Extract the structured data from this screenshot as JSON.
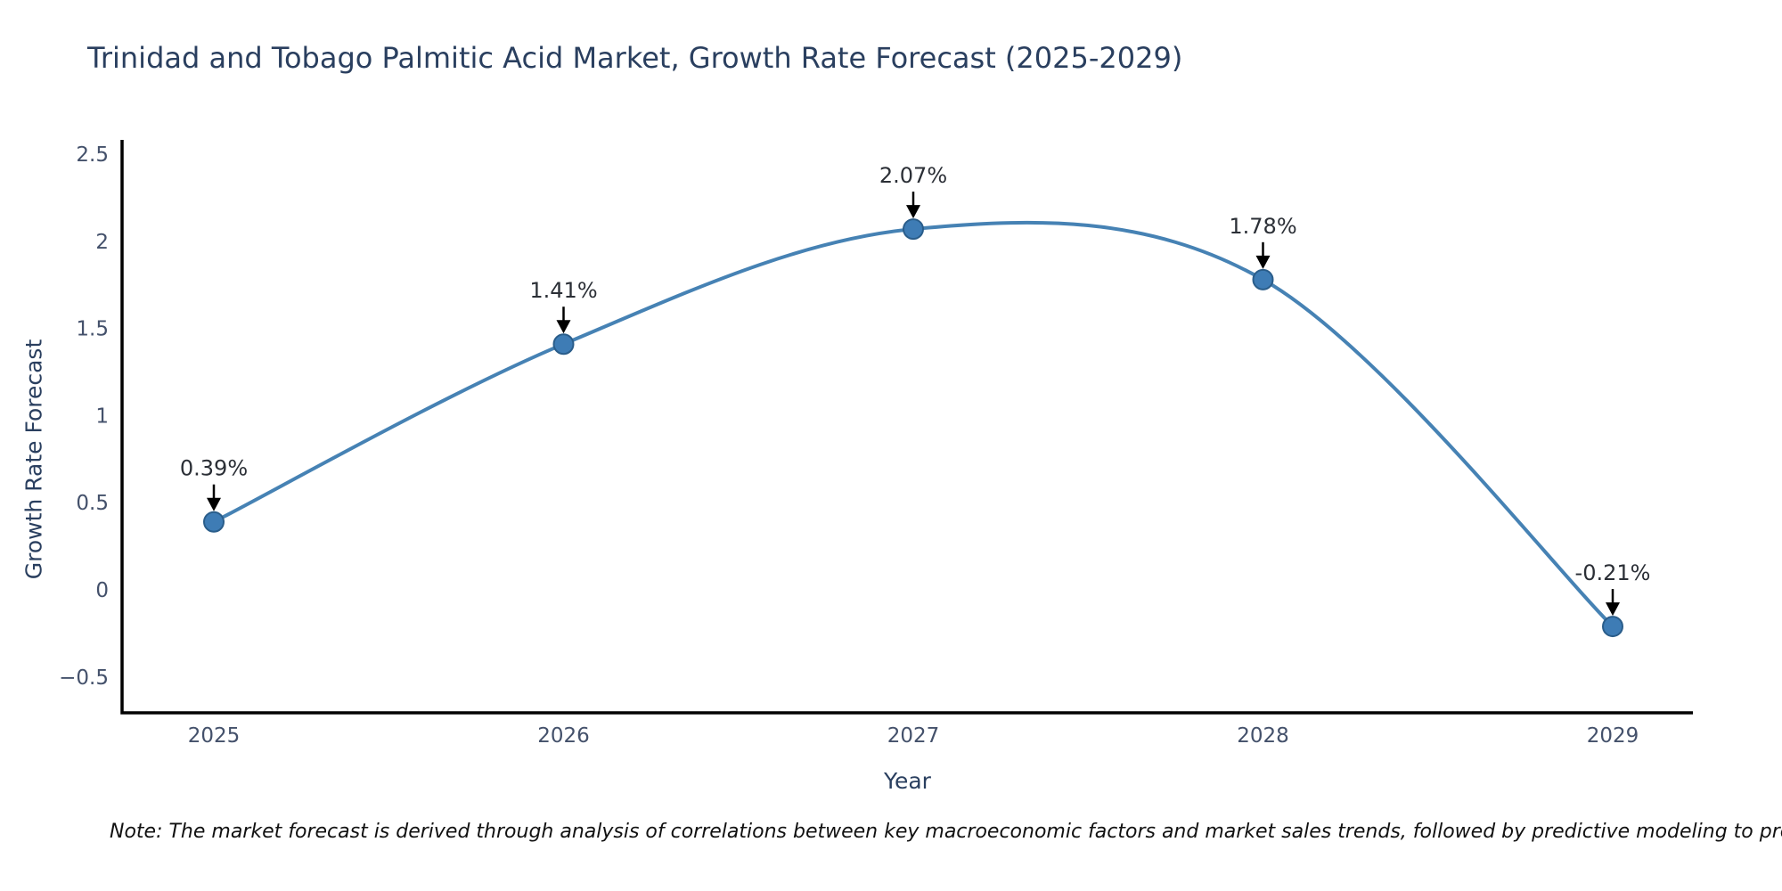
{
  "title": "Trinidad and Tobago Palmitic Acid Market, Growth Rate Forecast (2025-2029)",
  "note": "Note: The market forecast is derived through analysis of correlations between key macroeconomic factors and market sales trends, followed by predictive modeling to project future sales",
  "chart_data": {
    "type": "line",
    "title": "Trinidad and Tobago Palmitic Acid Market, Growth Rate Forecast (2025-2029)",
    "xlabel": "Year",
    "ylabel": "Growth Rate Forecast",
    "x": [
      2025,
      2026,
      2027,
      2028,
      2029
    ],
    "y": [
      0.39,
      1.41,
      2.07,
      1.78,
      -0.21
    ],
    "point_labels": [
      "0.39%",
      "1.41%",
      "2.07%",
      "1.78%",
      "-0.21%"
    ],
    "line_shape": "spline",
    "grid": false,
    "legend": "none",
    "ylim": [
      -0.71,
      2.58
    ],
    "yticks": {
      "values": [
        2.5,
        2,
        1.5,
        1,
        0.5,
        0,
        -0.5
      ],
      "labels": [
        "2.5",
        "2",
        "1.5",
        "1",
        "0.5",
        "0",
        "−0.5"
      ]
    },
    "xticks": [
      "2025",
      "2026",
      "2027",
      "2028",
      "2029"
    ],
    "colors": {
      "line": "#4682b4",
      "marker_fill": "#3e7cb5",
      "marker_edge": "#2a5d8a",
      "arrow": "#000000",
      "axis": "#000000",
      "heading_text": "#2a3f5f",
      "tick_text": "#44516b",
      "annotation_text": "#2b2f36",
      "note_text": "#111111"
    }
  }
}
